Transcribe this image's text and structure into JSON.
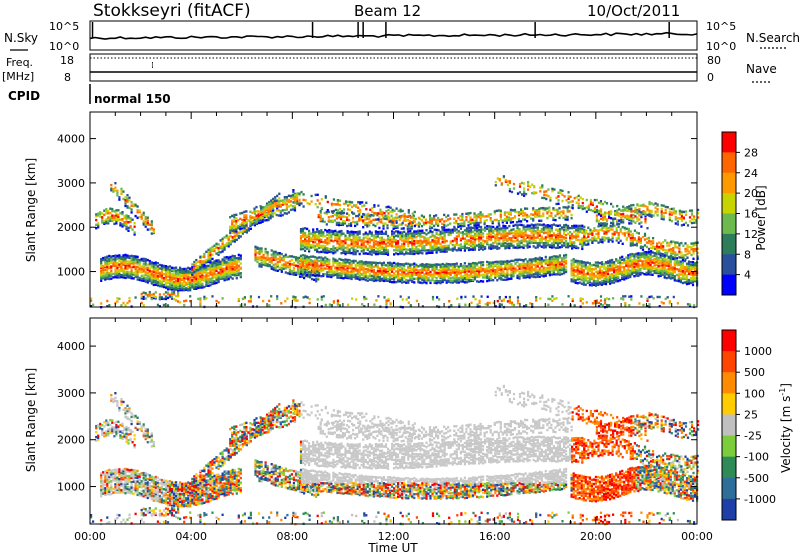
{
  "header": {
    "station": "Stokkseyri (fitACF)",
    "beam": "Beam 12",
    "date": "10/Oct/2011"
  },
  "strip_panels": {
    "nsky_label": "N.Sky",
    "nsearch_label": "N.Search",
    "freq_label": "Freq.",
    "freq_unit": "[MHz]",
    "nave_label": "Nave",
    "cpid_label": "CPID",
    "cpid_value": "normal 150",
    "nsky_ticks": [
      "10^5",
      "10^0"
    ],
    "nsearch_ticks": [
      "10^5",
      "10^0"
    ],
    "freq_ticks": [
      "18",
      "8"
    ],
    "nave_ticks": [
      "80",
      "0"
    ]
  },
  "colors": {
    "power_scale": [
      "#0000ff",
      "#2a4f9c",
      "#2e7d5a",
      "#6cb94e",
      "#c8d400",
      "#ff9900",
      "#ff6600",
      "#ff0000"
    ],
    "velocity_scale": [
      "#1f3fa8",
      "#2e6e98",
      "#2e8b57",
      "#7ccd3c",
      "#c0c0c0",
      "#ffcc00",
      "#ff8c00",
      "#ff4500",
      "#ff0000"
    ],
    "ground_scatter": "#c8c8c8"
  },
  "chart_data": [
    {
      "type": "heatmap",
      "name": "power",
      "ylabel": "Slant Range [km]",
      "xlabel": "Time UT",
      "xlim": [
        "00:00",
        "24:00"
      ],
      "ylim": [
        200,
        4600
      ],
      "yticks": [
        1000,
        2000,
        3000,
        4000
      ],
      "xticks": [
        "00:00",
        "04:00",
        "08:00",
        "12:00",
        "16:00",
        "20:00",
        "00:00"
      ],
      "colorbar": {
        "label": "Power [dB]",
        "ticks": [
          4,
          8,
          12,
          16,
          20,
          24,
          28
        ],
        "range": [
          0,
          32
        ]
      }
    },
    {
      "type": "heatmap",
      "name": "velocity",
      "ylabel": "Slant Range [km]",
      "xlabel": "Time UT",
      "xlim": [
        "00:00",
        "24:00"
      ],
      "ylim": [
        200,
        4600
      ],
      "yticks": [
        1000,
        2000,
        3000,
        4000
      ],
      "xticks": [
        "00:00",
        "04:00",
        "08:00",
        "12:00",
        "16:00",
        "20:00",
        "00:00"
      ],
      "colorbar": {
        "label": "Velocity [m s",
        "label_superscript": "-1",
        "ticks": [
          1000,
          500,
          100,
          25,
          -25,
          -100,
          -500,
          -1000
        ]
      }
    }
  ]
}
